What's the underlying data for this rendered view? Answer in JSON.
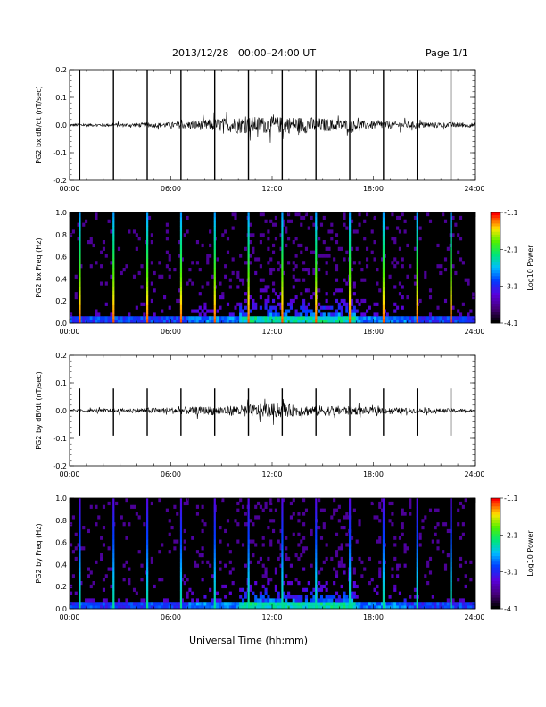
{
  "header": {
    "title": "2013/12/28   00:00–24:00 UT",
    "page": "Page 1/1"
  },
  "footer": {
    "xlabel": "Universal Time (hh:mm)"
  },
  "chart_data": [
    {
      "type": "line",
      "ylabel": "PG2 bx dB/dt (nT/sec)",
      "xlim": [
        0,
        24
      ],
      "ylim": [
        -0.2,
        0.2
      ],
      "xticks": [
        "00:00",
        "06:00",
        "12:00",
        "18:00",
        "24:00"
      ],
      "yticks": [
        "-0.2",
        "-0.1",
        "0.0",
        "0.1",
        "0.2"
      ],
      "spike_hours": [
        0.6,
        2.6,
        4.6,
        6.6,
        8.6,
        10.6,
        12.6,
        14.6,
        16.6,
        18.6,
        20.6,
        22.6
      ],
      "spike_range": [
        -0.2,
        0.2
      ],
      "noise_envelope": {
        "hours": [
          0,
          3,
          6,
          8,
          10,
          12,
          14,
          16,
          18,
          20,
          22,
          24
        ],
        "amplitude": [
          0.005,
          0.006,
          0.01,
          0.02,
          0.03,
          0.03,
          0.03,
          0.02,
          0.015,
          0.012,
          0.01,
          0.008
        ]
      }
    },
    {
      "type": "heatmap",
      "ylabel": "PG2 bx Freq (Hz)",
      "xlim": [
        0,
        24
      ],
      "ylim": [
        0,
        1.0
      ],
      "xticks": [
        "00:00",
        "06:00",
        "12:00",
        "18:00",
        "24:00"
      ],
      "yticks": [
        "0.0",
        "0.2",
        "0.4",
        "0.6",
        "0.8",
        "1.0"
      ],
      "colorbar": {
        "label": "Log10 Power",
        "ticks": [
          "-1.1",
          "-2.1",
          "-3.1",
          "-4.1"
        ],
        "range": [
          -4.1,
          -1.1
        ],
        "scale": "rainbow"
      },
      "spike_hours": [
        0.6,
        2.6,
        4.6,
        6.6,
        8.6,
        10.6,
        12.6,
        14.6,
        16.6,
        18.6,
        20.6,
        22.6
      ],
      "activity_window_hours": [
        10,
        17
      ]
    },
    {
      "type": "line",
      "ylabel": "PG2 by dB/dt (nT/sec)",
      "xlim": [
        0,
        24
      ],
      "ylim": [
        -0.2,
        0.2
      ],
      "xticks": [
        "00:00",
        "06:00",
        "12:00",
        "18:00",
        "24:00"
      ],
      "yticks": [
        "-0.2",
        "-0.1",
        "0.0",
        "0.1",
        "0.2"
      ],
      "spike_hours": [
        0.6,
        2.6,
        4.6,
        6.6,
        8.6,
        10.6,
        12.6,
        14.6,
        16.6,
        18.6,
        20.6,
        22.6
      ],
      "spike_range": [
        -0.09,
        0.08
      ],
      "noise_envelope": {
        "hours": [
          0,
          3,
          6,
          8,
          10,
          12,
          14,
          16,
          18,
          20,
          22,
          24
        ],
        "amplitude": [
          0.004,
          0.008,
          0.012,
          0.015,
          0.02,
          0.025,
          0.02,
          0.018,
          0.012,
          0.01,
          0.008,
          0.006
        ]
      }
    },
    {
      "type": "heatmap",
      "ylabel": "PG2 by Freq (Hz)",
      "xlim": [
        0,
        24
      ],
      "ylim": [
        0,
        1.0
      ],
      "xticks": [
        "00:00",
        "06:00",
        "12:00",
        "18:00",
        "24:00"
      ],
      "yticks": [
        "0.0",
        "0.2",
        "0.4",
        "0.6",
        "0.8",
        "1.0"
      ],
      "colorbar": {
        "label": "Log10 Power",
        "ticks": [
          "-1.1",
          "-2.1",
          "-3.1",
          "-4.1"
        ],
        "range": [
          -4.1,
          -1.1
        ],
        "scale": "rainbow"
      },
      "spike_hours": [
        0.6,
        2.6,
        4.6,
        6.6,
        8.6,
        10.6,
        12.6,
        14.6,
        16.6,
        18.6,
        20.6,
        22.6
      ],
      "activity_window_hours": [
        10,
        17
      ]
    }
  ]
}
